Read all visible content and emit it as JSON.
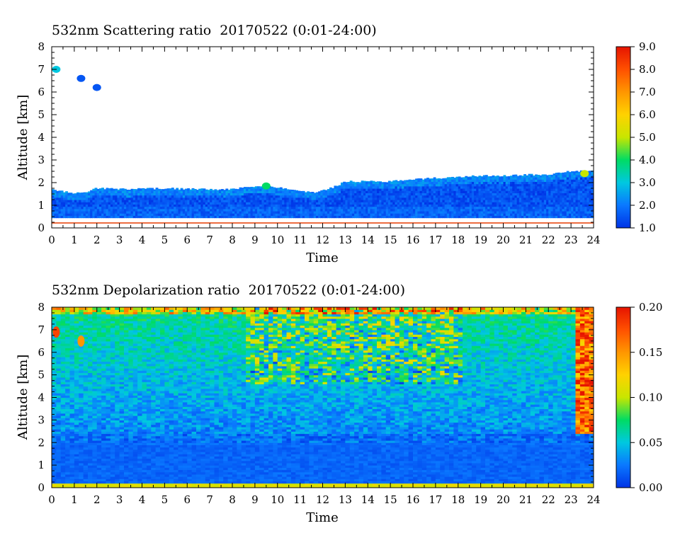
{
  "chart_data": [
    {
      "type": "heatmap",
      "title": "532nm Scattering ratio  20170522 (0:01-24:00)",
      "xlabel": "Time",
      "ylabel": "Altitude [km]",
      "xlim": [
        0,
        24
      ],
      "ylim": [
        0,
        8
      ],
      "x_ticks": [
        "0",
        "1",
        "2",
        "3",
        "4",
        "5",
        "6",
        "7",
        "8",
        "9",
        "10",
        "11",
        "12",
        "13",
        "14",
        "15",
        "16",
        "17",
        "18",
        "19",
        "20",
        "21",
        "22",
        "23",
        "24"
      ],
      "y_ticks": [
        "0",
        "1",
        "2",
        "3",
        "4",
        "5",
        "6",
        "7",
        "8"
      ],
      "colorbar": {
        "range": [
          1.0,
          9.0
        ],
        "ticks": [
          "1.0",
          "2.0",
          "3.0",
          "4.0",
          "5.0",
          "6.0",
          "7.0",
          "8.0",
          "9.0"
        ]
      },
      "cloud_top_km": [
        [
          0,
          1.7
        ],
        [
          0.5,
          1.6
        ],
        [
          1,
          1.55
        ],
        [
          1.5,
          1.6
        ],
        [
          2,
          1.75
        ],
        [
          3,
          1.72
        ],
        [
          4,
          1.72
        ],
        [
          5,
          1.75
        ],
        [
          6,
          1.72
        ],
        [
          7,
          1.7
        ],
        [
          8,
          1.72
        ],
        [
          9,
          1.85
        ],
        [
          10,
          1.8
        ],
        [
          11,
          1.65
        ],
        [
          11.5,
          1.55
        ],
        [
          12,
          1.65
        ],
        [
          12.5,
          1.8
        ],
        [
          13,
          2.05
        ],
        [
          14,
          2.05
        ],
        [
          15,
          2.05
        ],
        [
          16,
          2.15
        ],
        [
          17,
          2.2
        ],
        [
          18,
          2.25
        ],
        [
          19,
          2.3
        ],
        [
          20,
          2.3
        ],
        [
          21,
          2.35
        ],
        [
          22,
          2.35
        ],
        [
          23,
          2.5
        ],
        [
          23.5,
          2.5
        ],
        [
          24,
          2.5
        ]
      ],
      "cloud_base_km": 0.45,
      "surface_line_km": 0.22,
      "features": [
        {
          "time": 0.2,
          "alt_km": 7.0,
          "value": 3.0
        },
        {
          "time": 1.3,
          "alt_km": 6.6,
          "value": 1.5
        },
        {
          "time": 2.0,
          "alt_km": 6.2,
          "value": 1.5
        },
        {
          "time": 9.5,
          "alt_km": 1.85,
          "value": 4.0
        },
        {
          "time": 23.6,
          "alt_km": 2.4,
          "value": 5.0
        }
      ]
    },
    {
      "type": "heatmap",
      "title": "532nm Depolarization ratio  20170522 (0:01-24:00)",
      "xlabel": "Time",
      "ylabel": "Altitude [km]",
      "xlim": [
        0,
        24
      ],
      "ylim": [
        0,
        8
      ],
      "x_ticks": [
        "0",
        "1",
        "2",
        "3",
        "4",
        "5",
        "6",
        "7",
        "8",
        "9",
        "10",
        "11",
        "12",
        "13",
        "14",
        "15",
        "16",
        "17",
        "18",
        "19",
        "20",
        "21",
        "22",
        "23",
        "24"
      ],
      "y_ticks": [
        "0",
        "1",
        "2",
        "3",
        "4",
        "5",
        "6",
        "7",
        "8"
      ],
      "colorbar": {
        "range": [
          0.0,
          0.2
        ],
        "ticks": [
          "0.00",
          "0.05",
          "0.10",
          "0.15",
          "0.20"
        ]
      },
      "features": [
        {
          "time": 0.2,
          "alt_km": 6.9,
          "value": 0.18
        },
        {
          "time": 1.3,
          "alt_km": 6.5,
          "value": 0.15
        },
        {
          "time_range": [
            23.0,
            24.0
          ],
          "alt_range_km": [
            2.4,
            8.0
          ],
          "value": 0.18
        },
        {
          "time_range": [
            9.0,
            18.0
          ],
          "alt_range_km": [
            5.0,
            8.0
          ],
          "value": 0.1
        }
      ]
    }
  ]
}
